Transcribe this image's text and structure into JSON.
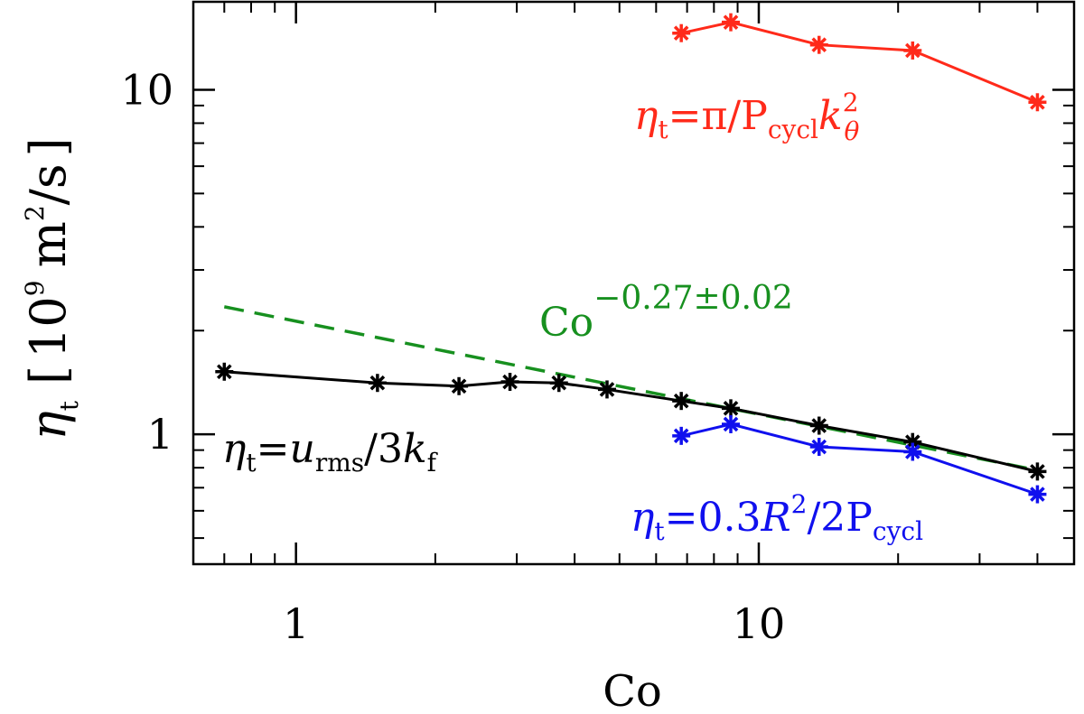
{
  "chart_data": {
    "type": "line",
    "scale": {
      "x": "log",
      "y": "log"
    },
    "xlabel": "Co",
    "ylabel": {
      "symbol": "η",
      "sub": "t",
      "units_open": "[",
      "base": "10",
      "exp": "9",
      "unit": "m",
      "unit_exp": "2",
      "unit_rest": "/s",
      "units_close": "]"
    },
    "xlim": [
      0.6,
      48
    ],
    "ylim": [
      0.42,
      18
    ],
    "xticks_major": [
      1,
      10
    ],
    "xtick_labels": [
      "1",
      "10"
    ],
    "yticks_major": [
      1,
      10
    ],
    "ytick_labels": [
      "1",
      "10"
    ],
    "series": [
      {
        "name": "red",
        "color": "#ff2a1a",
        "label": {
          "lhs": "η",
          "lhs_sub": "t",
          "eq": "=",
          "text": "π/P",
          "sub": "cycl",
          "var": "k",
          "var_sup": "2",
          "var_sub": "θ"
        },
        "x": [
          6.8,
          8.7,
          13.5,
          21.5,
          40
        ],
        "y": [
          14.6,
          15.7,
          13.5,
          13.0,
          9.2
        ]
      },
      {
        "name": "black",
        "color": "#000000",
        "label": {
          "lhs": "η",
          "lhs_sub": "t",
          "eq": "=",
          "var": "u",
          "var_sub": "rms",
          "text": "/3",
          "var2": "k",
          "var2_sub": "f"
        },
        "x": [
          0.7,
          1.5,
          2.25,
          2.9,
          3.7,
          4.7,
          6.8,
          8.7,
          13.5,
          21.5,
          40
        ],
        "y": [
          1.52,
          1.41,
          1.38,
          1.42,
          1.41,
          1.35,
          1.25,
          1.19,
          1.06,
          0.95,
          0.78
        ]
      },
      {
        "name": "blue",
        "color": "#1010ee",
        "label": {
          "lhs": "η",
          "lhs_sub": "t",
          "eq": "=",
          "text": "0.3",
          "var": "R",
          "var_sup": "2",
          "text2": "/2P",
          "sub": "cycl"
        },
        "x": [
          6.8,
          8.7,
          13.5,
          21.5,
          40
        ],
        "y": [
          0.99,
          1.07,
          0.92,
          0.89,
          0.67
        ]
      }
    ],
    "fit": {
      "color": "#17901f",
      "style": "dashed",
      "label": {
        "base": "Co",
        "exp": "−0.27±0.02"
      },
      "x_start": 0.7,
      "x_end": 40,
      "coefficient": 2.13,
      "exponent": -0.27
    }
  }
}
